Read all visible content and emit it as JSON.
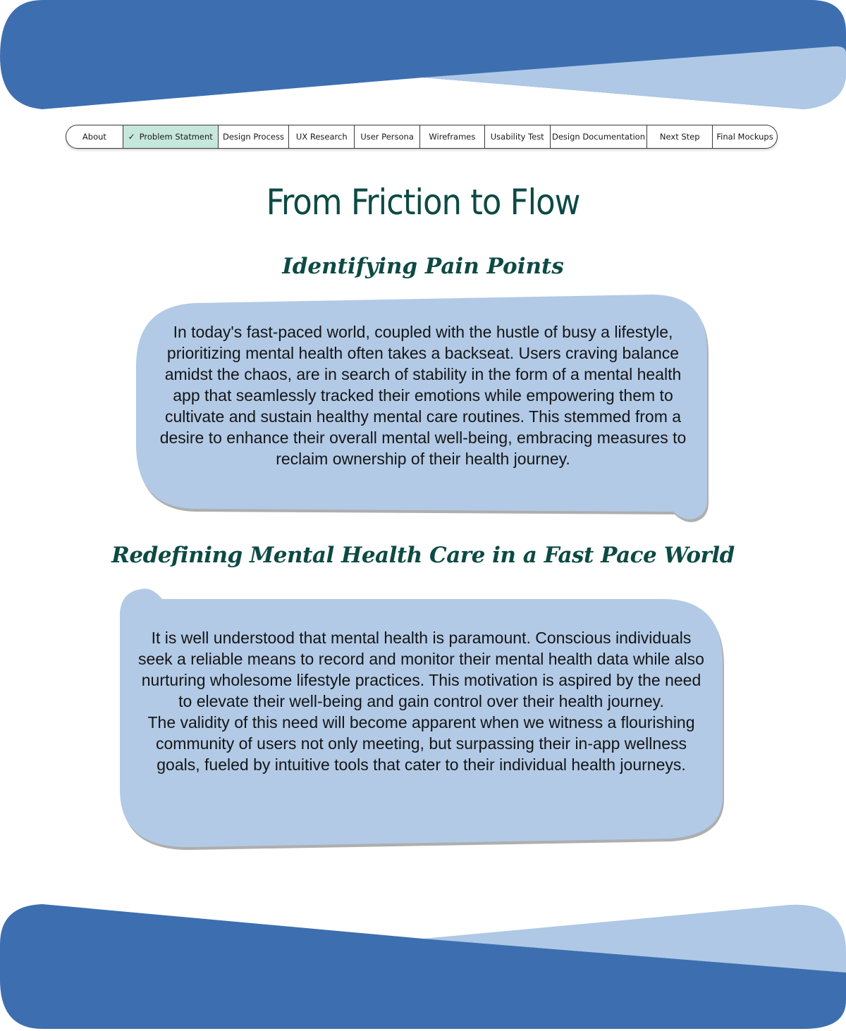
{
  "colors": {
    "dark_blue": "#3d6fb0",
    "light_blue": "#aec8e6",
    "bubble": "#b2cae6",
    "heading_green": "#0d4a44",
    "active_tab": "#c6e7dc"
  },
  "nav": {
    "items": [
      {
        "label": "About",
        "active": false
      },
      {
        "label": "Problem Statment",
        "active": true,
        "icon": "check-icon"
      },
      {
        "label": "Design Process",
        "active": false
      },
      {
        "label": "UX Research",
        "active": false
      },
      {
        "label": "User Persona",
        "active": false
      },
      {
        "label": "Wireframes",
        "active": false
      },
      {
        "label": "Usability Test",
        "active": false
      },
      {
        "label": "Design Documentation",
        "active": false
      },
      {
        "label": "Next Step",
        "active": false
      },
      {
        "label": "Final Mockups",
        "active": false
      }
    ]
  },
  "page": {
    "title": "From Friction to Flow",
    "section1": {
      "heading": "Identifying Pain Points",
      "body": "In today's fast-paced world, coupled with the hustle of busy a lifestyle, prioritizing mental health often takes a backseat. Users craving balance amidst the chaos, are in search of stability in the form of a mental health app that seamlessly tracked their emotions while empowering them to cultivate and sustain healthy mental care routines. This stemmed from a desire to enhance their overall mental well-being, embracing measures to reclaim ownership of their health journey."
    },
    "section2": {
      "heading": "Redefining Mental Health Care in a Fast Pace World",
      "body_lines": [
        "It is well understood that mental health is paramount. Conscious individuals seek a reliable means to record and monitor their mental health data while also nurturing wholesome lifestyle practices. This motivation is aspired by the need to elevate their  well-being and gain control over their health journey.",
        "The validity of this need will become apparent when we witness a flourishing community of users not only meeting, but surpassing their in-app wellness goals, fueled by intuitive tools that cater to their individual health journeys."
      ]
    }
  }
}
